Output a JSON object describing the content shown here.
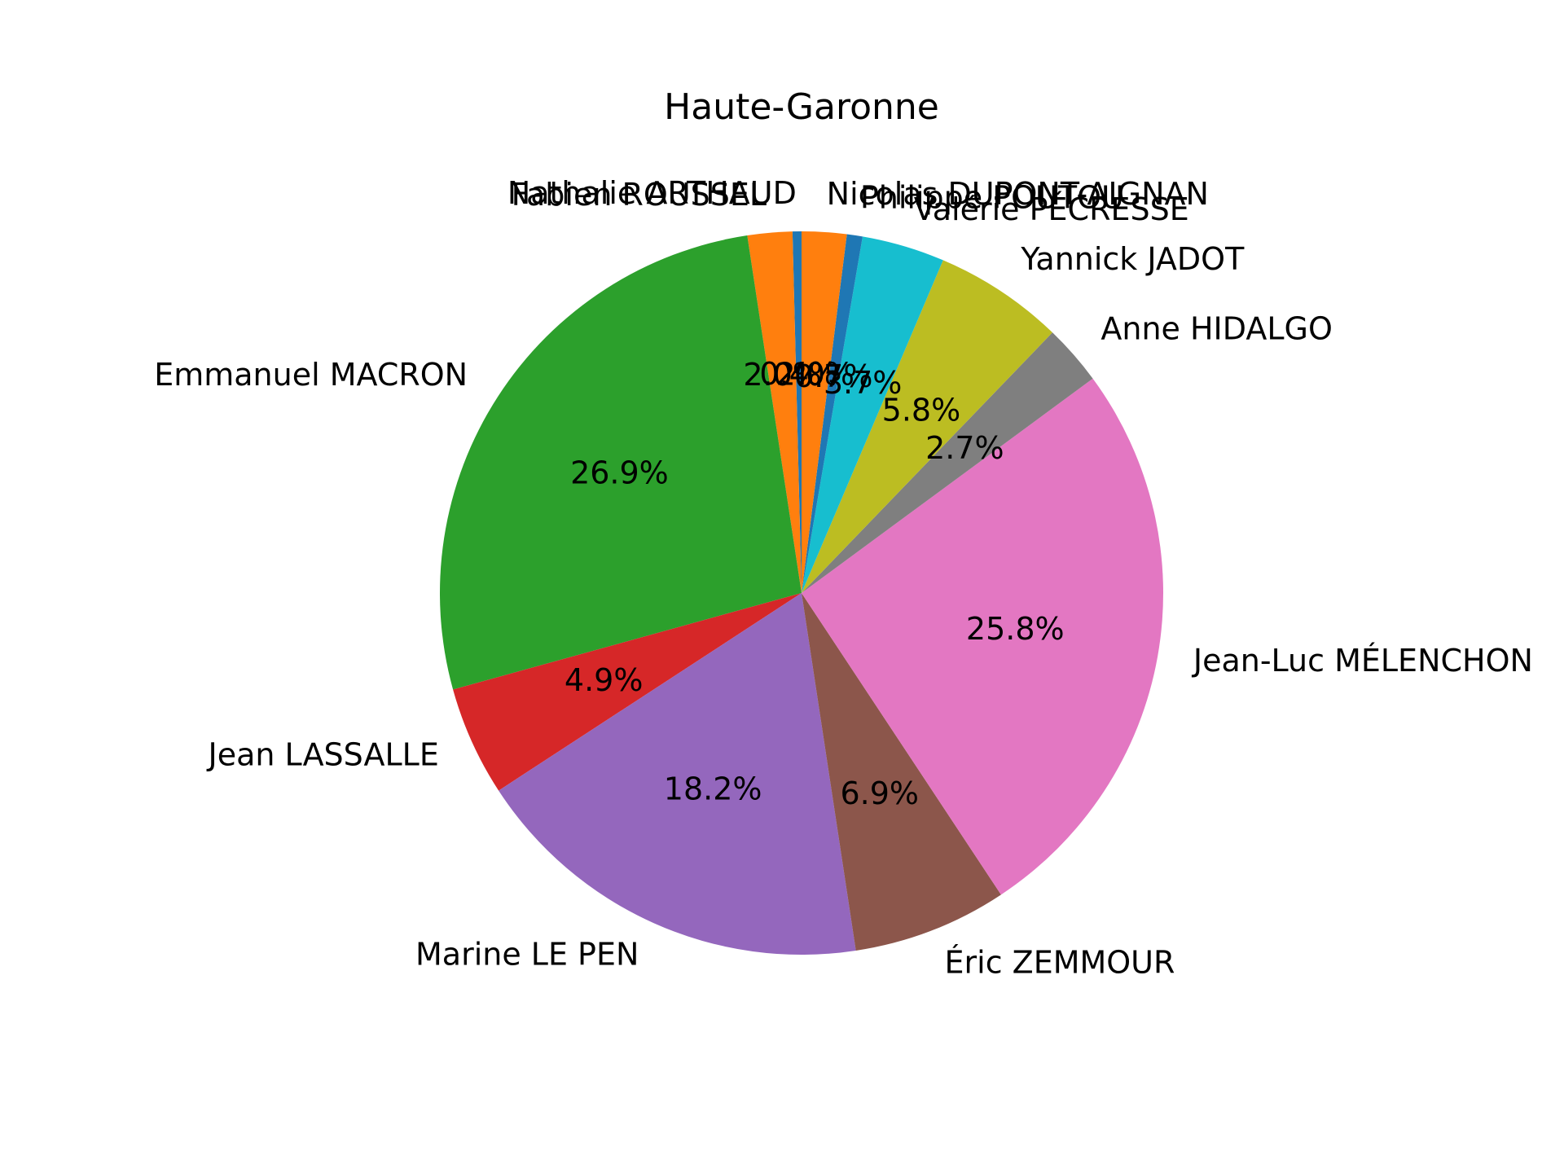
{
  "chart_data": {
    "type": "pie",
    "title": "Haute-Garonne",
    "slices": [
      {
        "label": "Nathalie ARTHAUD",
        "value": 0.4,
        "pct_text": "0.4%",
        "color": "#1f77b4"
      },
      {
        "label": "Fabien ROUSSEL",
        "value": 2.0,
        "pct_text": "2.0%",
        "color": "#ff7f0e"
      },
      {
        "label": "Emmanuel MACRON",
        "value": 26.9,
        "pct_text": "26.9%",
        "color": "#2ca02c"
      },
      {
        "label": "Jean LASSALLE",
        "value": 4.9,
        "pct_text": "4.9%",
        "color": "#d62728"
      },
      {
        "label": "Marine LE PEN",
        "value": 18.2,
        "pct_text": "18.2%",
        "color": "#9467bd"
      },
      {
        "label": "Éric ZEMMOUR",
        "value": 6.9,
        "pct_text": "6.9%",
        "color": "#8c564b"
      },
      {
        "label": "Jean-Luc MÉLENCHON",
        "value": 25.8,
        "pct_text": "25.8%",
        "color": "#e377c2"
      },
      {
        "label": "Anne HIDALGO",
        "value": 2.7,
        "pct_text": "2.7%",
        "color": "#7f7f7f"
      },
      {
        "label": "Yannick JADOT",
        "value": 5.8,
        "pct_text": "5.8%",
        "color": "#bcbd22"
      },
      {
        "label": "Valérie PÉCRESSE",
        "value": 3.7,
        "pct_text": "3.7%",
        "color": "#17becf"
      },
      {
        "label": "Philippe POUTOU",
        "value": 0.7,
        "pct_text": "0.7%",
        "color": "#1f77b4"
      },
      {
        "label": "Nicolas DUPONT-AIGNAN",
        "value": 2.0,
        "pct_text": "2.0%",
        "color": "#ff7f0e"
      }
    ],
    "start_angle_deg": 90,
    "direction": "counterclockwise",
    "legend": "none"
  }
}
